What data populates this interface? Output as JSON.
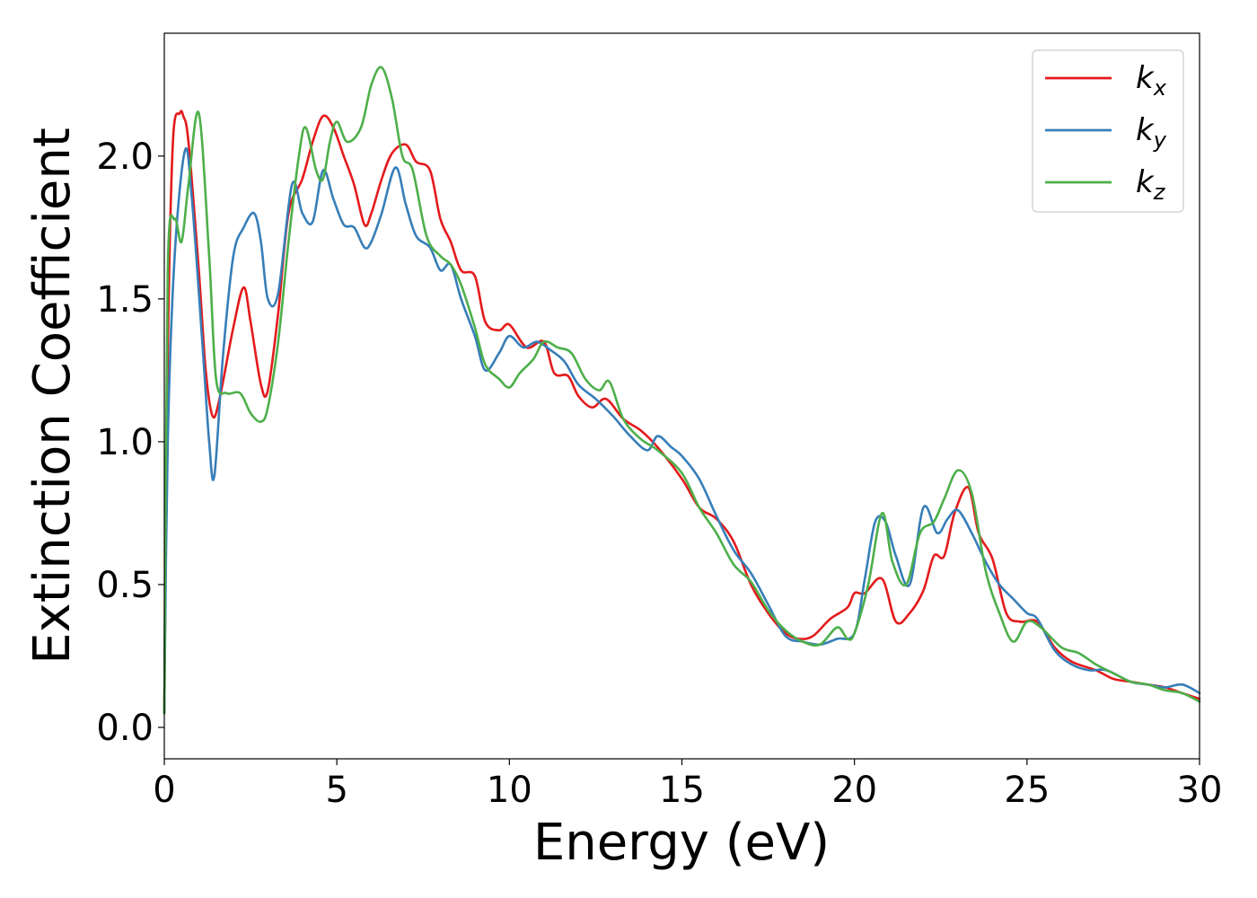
{
  "chart_data": {
    "type": "line",
    "title": "",
    "xlabel": "Energy (eV)",
    "ylabel": "Extinction Coefficient",
    "xlim": [
      0,
      30
    ],
    "ylim": [
      -0.11,
      2.43
    ],
    "xticks": [
      0,
      5,
      10,
      15,
      20,
      25,
      30
    ],
    "xtick_labels": [
      "0",
      "5",
      "10",
      "15",
      "20",
      "25",
      "30"
    ],
    "yticks": [
      0.0,
      0.5,
      1.0,
      1.5,
      2.0
    ],
    "ytick_labels": [
      "0.0",
      "0.5",
      "1.0",
      "1.5",
      "2.0"
    ],
    "grid": false,
    "legend_position": "top-right",
    "series": [
      {
        "name": "k_x",
        "legend_main": "k",
        "legend_sub": "x",
        "color": "#e41a1c",
        "x": [
          0,
          0.1,
          0.25,
          0.45,
          0.55,
          0.7,
          1.0,
          1.2,
          1.4,
          1.6,
          2.0,
          2.3,
          2.5,
          2.8,
          3.0,
          3.3,
          3.6,
          4.0,
          4.3,
          4.6,
          4.9,
          5.2,
          5.5,
          5.8,
          6.0,
          6.3,
          6.6,
          7.0,
          7.3,
          7.7,
          8.0,
          8.3,
          8.6,
          9.0,
          9.3,
          9.7,
          10.0,
          10.5,
          11.0,
          11.3,
          11.7,
          12.0,
          12.4,
          12.8,
          13.3,
          13.8,
          14.3,
          15.0,
          15.5,
          16.0,
          16.5,
          17.0,
          17.5,
          18.0,
          18.4,
          18.8,
          19.3,
          19.8,
          20.0,
          20.3,
          20.8,
          21.2,
          21.6,
          22.0,
          22.3,
          22.6,
          22.9,
          23.3,
          23.6,
          24.0,
          24.4,
          24.8,
          25.3,
          25.8,
          26.3,
          27.0,
          27.5,
          28.0,
          28.5,
          29.0,
          29.5,
          30.0
        ],
        "y": [
          0.05,
          1.3,
          2.05,
          2.15,
          2.14,
          2.05,
          1.6,
          1.25,
          1.09,
          1.15,
          1.4,
          1.54,
          1.42,
          1.2,
          1.18,
          1.45,
          1.8,
          1.92,
          2.05,
          2.14,
          2.1,
          2.0,
          1.9,
          1.76,
          1.8,
          1.92,
          2.01,
          2.04,
          1.98,
          1.95,
          1.78,
          1.7,
          1.6,
          1.58,
          1.42,
          1.39,
          1.41,
          1.33,
          1.35,
          1.24,
          1.23,
          1.16,
          1.12,
          1.15,
          1.08,
          1.04,
          0.98,
          0.87,
          0.77,
          0.73,
          0.65,
          0.5,
          0.4,
          0.33,
          0.31,
          0.32,
          0.38,
          0.42,
          0.47,
          0.47,
          0.52,
          0.37,
          0.4,
          0.48,
          0.6,
          0.6,
          0.75,
          0.84,
          0.68,
          0.59,
          0.4,
          0.37,
          0.37,
          0.28,
          0.23,
          0.2,
          0.17,
          0.16,
          0.15,
          0.14,
          0.12,
          0.1
        ]
      },
      {
        "name": "k_y",
        "legend_main": "k",
        "legend_sub": "y",
        "color": "#377eb8",
        "x": [
          0,
          0.1,
          0.3,
          0.6,
          0.8,
          1.1,
          1.3,
          1.45,
          1.7,
          2.0,
          2.3,
          2.6,
          2.8,
          3.0,
          3.3,
          3.7,
          4.0,
          4.3,
          4.6,
          4.9,
          5.2,
          5.5,
          5.8,
          6.0,
          6.3,
          6.7,
          7.0,
          7.3,
          7.7,
          8.0,
          8.3,
          8.6,
          9.0,
          9.3,
          9.7,
          10.0,
          10.4,
          10.8,
          11.2,
          11.6,
          12.0,
          12.5,
          13.0,
          13.5,
          14.0,
          14.3,
          14.7,
          15.0,
          15.5,
          16.0,
          16.5,
          17.0,
          17.5,
          18.0,
          18.5,
          19.0,
          19.5,
          20.0,
          20.3,
          20.6,
          20.9,
          21.2,
          21.6,
          22.0,
          22.4,
          22.7,
          23.0,
          23.4,
          23.8,
          24.2,
          24.6,
          25.0,
          25.3,
          25.8,
          26.3,
          26.8,
          27.3,
          28.0,
          28.5,
          29.0,
          29.5,
          30.0
        ],
        "y": [
          0.05,
          1.0,
          1.65,
          2.02,
          1.85,
          1.35,
          1.0,
          0.88,
          1.3,
          1.65,
          1.75,
          1.8,
          1.7,
          1.5,
          1.52,
          1.9,
          1.8,
          1.77,
          1.95,
          1.85,
          1.76,
          1.75,
          1.68,
          1.7,
          1.8,
          1.96,
          1.83,
          1.72,
          1.68,
          1.6,
          1.62,
          1.5,
          1.37,
          1.25,
          1.31,
          1.37,
          1.33,
          1.35,
          1.32,
          1.28,
          1.2,
          1.15,
          1.09,
          1.02,
          0.97,
          1.02,
          0.98,
          0.95,
          0.87,
          0.74,
          0.62,
          0.54,
          0.43,
          0.32,
          0.3,
          0.29,
          0.31,
          0.33,
          0.52,
          0.72,
          0.72,
          0.6,
          0.5,
          0.77,
          0.68,
          0.73,
          0.76,
          0.68,
          0.58,
          0.5,
          0.45,
          0.4,
          0.38,
          0.27,
          0.22,
          0.2,
          0.2,
          0.16,
          0.15,
          0.14,
          0.15,
          0.12
        ]
      },
      {
        "name": "k_z",
        "legend_main": "k",
        "legend_sub": "z",
        "color": "#4daf4a",
        "x": [
          0,
          0.1,
          0.3,
          0.5,
          0.7,
          1.0,
          1.3,
          1.5,
          1.8,
          2.2,
          2.5,
          2.8,
          3.0,
          3.3,
          3.6,
          3.9,
          4.1,
          4.4,
          4.6,
          4.8,
          5.0,
          5.3,
          5.7,
          6.0,
          6.3,
          6.6,
          6.9,
          7.2,
          7.6,
          8.0,
          8.3,
          8.6,
          9.0,
          9.3,
          9.7,
          10.0,
          10.3,
          10.7,
          11.0,
          11.4,
          11.8,
          12.2,
          12.6,
          12.9,
          13.3,
          13.8,
          14.3,
          15.0,
          15.5,
          16.0,
          16.5,
          17.0,
          17.5,
          18.0,
          18.5,
          19.0,
          19.5,
          19.8,
          20.0,
          20.4,
          20.8,
          21.1,
          21.5,
          21.9,
          22.3,
          22.6,
          23.0,
          23.4,
          23.8,
          24.2,
          24.6,
          25.0,
          25.4,
          26.0,
          26.5,
          27.0,
          27.5,
          28.0,
          28.5,
          29.0,
          29.5,
          30.0
        ],
        "y": [
          0.05,
          1.6,
          1.78,
          1.7,
          1.9,
          2.15,
          1.65,
          1.22,
          1.17,
          1.17,
          1.1,
          1.07,
          1.12,
          1.35,
          1.7,
          2.0,
          2.1,
          1.95,
          1.92,
          2.05,
          2.12,
          2.05,
          2.1,
          2.25,
          2.31,
          2.2,
          2.0,
          1.95,
          1.72,
          1.65,
          1.62,
          1.55,
          1.4,
          1.27,
          1.22,
          1.19,
          1.24,
          1.29,
          1.35,
          1.33,
          1.31,
          1.22,
          1.18,
          1.21,
          1.08,
          1.01,
          0.97,
          0.89,
          0.77,
          0.68,
          0.57,
          0.51,
          0.41,
          0.34,
          0.3,
          0.29,
          0.35,
          0.31,
          0.33,
          0.5,
          0.75,
          0.58,
          0.5,
          0.68,
          0.72,
          0.8,
          0.9,
          0.82,
          0.55,
          0.4,
          0.3,
          0.37,
          0.35,
          0.28,
          0.26,
          0.22,
          0.19,
          0.16,
          0.15,
          0.13,
          0.12,
          0.09
        ]
      }
    ]
  }
}
